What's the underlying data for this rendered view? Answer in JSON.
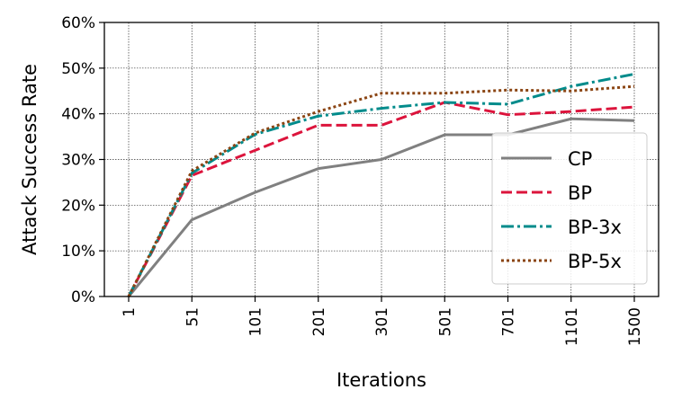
{
  "chart_data": {
    "type": "line",
    "xlabel": "Iterations",
    "ylabel": "Attack Success Rate",
    "categories": [
      "1",
      "51",
      "101",
      "201",
      "301",
      "501",
      "701",
      "1101",
      "1500"
    ],
    "ylim": [
      0,
      60
    ],
    "yticks": [
      0,
      10,
      20,
      30,
      40,
      50,
      60
    ],
    "ytick_labels": [
      "0%",
      "10%",
      "20%",
      "30%",
      "40%",
      "50%",
      "60%"
    ],
    "grid": true,
    "legend_position": "center-right",
    "series": [
      {
        "name": "CP",
        "color": "#808080",
        "dash": "solid",
        "values": [
          0,
          16.8,
          22.8,
          28.0,
          30.0,
          35.4,
          35.4,
          38.9,
          38.5
        ]
      },
      {
        "name": "BP",
        "color": "#dc143c",
        "dash": "dashed",
        "values": [
          0,
          26.5,
          32.0,
          37.5,
          37.5,
          42.5,
          39.8,
          40.5,
          41.5
        ]
      },
      {
        "name": "BP-3x",
        "color": "#008b8b",
        "dash": "dashdot",
        "values": [
          0,
          27.0,
          35.5,
          39.5,
          41.2,
          42.5,
          42.1,
          46.0,
          48.7
        ]
      },
      {
        "name": "BP-5x",
        "color": "#8b4513",
        "dash": "dotted",
        "values": [
          0,
          27.5,
          35.8,
          40.5,
          44.5,
          44.5,
          45.2,
          45.0,
          46.0
        ]
      }
    ]
  }
}
